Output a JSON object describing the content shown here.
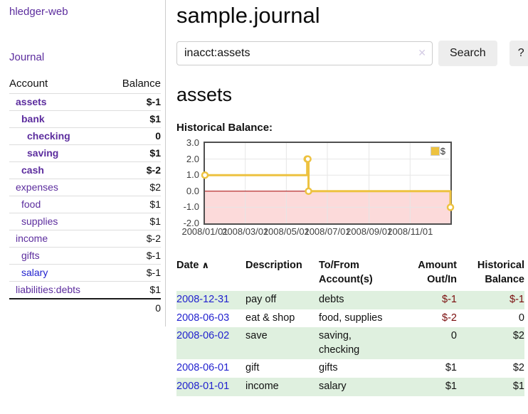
{
  "colors": {
    "link_purple": "#5c2d9e",
    "link_blue": "#2222cf",
    "negative_red": "#7a0c0c",
    "negative_muted_rose": "#b36b6b",
    "row_stripe_green": "#dff0df",
    "series_gold": "#edc240",
    "chart_negative_region": "#fcdada",
    "chart_zero_line": "#a40000",
    "chart_grid": "#e6e6e6"
  },
  "sidebar": {
    "brand": "hledger-web",
    "nav": {
      "journal": "Journal"
    },
    "accounts_table": {
      "headers": {
        "account": "Account",
        "balance": "Balance"
      },
      "rows": [
        {
          "name": "assets",
          "depth": 1,
          "balance": "$-1",
          "bold": true,
          "negative": true
        },
        {
          "name": "bank",
          "depth": 2,
          "balance": "$1",
          "bold": true
        },
        {
          "name": "checking",
          "depth": 3,
          "balance": "0",
          "bold": true
        },
        {
          "name": "saving",
          "depth": 3,
          "balance": "$1",
          "bold": true
        },
        {
          "name": "cash",
          "depth": 2,
          "balance": "$-2",
          "bold": true,
          "negative": true
        },
        {
          "name": "expenses",
          "depth": 1,
          "balance": "$2"
        },
        {
          "name": "food",
          "depth": 2,
          "balance": "$1"
        },
        {
          "name": "supplies",
          "depth": 2,
          "balance": "$1"
        },
        {
          "name": "income",
          "depth": 1,
          "balance": "$-2",
          "negative_muted": true
        },
        {
          "name": "gifts",
          "depth": 2,
          "balance": "$-1",
          "negative_muted": true
        },
        {
          "name": "salary",
          "depth": 2,
          "balance": "$-1",
          "negative_muted": true,
          "unvisited": true
        },
        {
          "name": "liabilities:debts",
          "depth": 1,
          "balance": "$1"
        }
      ],
      "total": "0"
    }
  },
  "main": {
    "title": "sample.journal",
    "search": {
      "value": "inacct:assets",
      "clear_icon": "✕",
      "search_button": "Search",
      "help_button": "?"
    },
    "account_heading": "assets",
    "chart_label": "Historical Balance:"
  },
  "chart_data": {
    "type": "line",
    "title": "Historical Balance",
    "steps": true,
    "series": [
      {
        "name": "$",
        "color": "#edc240",
        "points": [
          [
            "2008-01-01",
            1
          ],
          [
            "2008-06-01",
            2
          ],
          [
            "2008-06-02",
            2
          ],
          [
            "2008-06-03",
            0
          ],
          [
            "2008-12-31",
            -1
          ]
        ]
      }
    ],
    "xlim": [
      "2008-01-01",
      "2008-12-31"
    ],
    "ylim": [
      -2,
      3
    ],
    "yticks": [
      3.0,
      2.0,
      1.0,
      0.0,
      -1.0,
      -2.0
    ],
    "xticks": [
      "2008/01/01",
      "2008/03/01",
      "2008/05/01",
      "2008/07/01",
      "2008/09/01",
      "2008/11/01"
    ],
    "grid": true,
    "legend_position": "top-right",
    "negative_region_color": "#fcdada",
    "zero_line_color": "#a40000"
  },
  "register_table": {
    "headers": {
      "date": "Date",
      "sort_indicator": "∧",
      "description": "Description",
      "accounts": "To/From Account(s)",
      "amount": "Amount Out/In",
      "balance": "Historical Balance"
    },
    "rows": [
      {
        "date": "2008-12-31",
        "description": "pay off",
        "accounts": "debts",
        "amount": "$-1",
        "amount_negative": true,
        "balance": "$-1",
        "balance_negative": true
      },
      {
        "date": "2008-06-03",
        "description": "eat & shop",
        "accounts": "food, supplies",
        "amount": "$-2",
        "amount_negative": true,
        "balance": "0"
      },
      {
        "date": "2008-06-02",
        "description": "save",
        "accounts": "saving, checking",
        "amount": "0",
        "balance": "$2"
      },
      {
        "date": "2008-06-01",
        "description": "gift",
        "accounts": "gifts",
        "amount": "$1",
        "balance": "$2"
      },
      {
        "date": "2008-01-01",
        "description": "income",
        "accounts": "salary",
        "amount": "$1",
        "balance": "$1"
      }
    ]
  }
}
